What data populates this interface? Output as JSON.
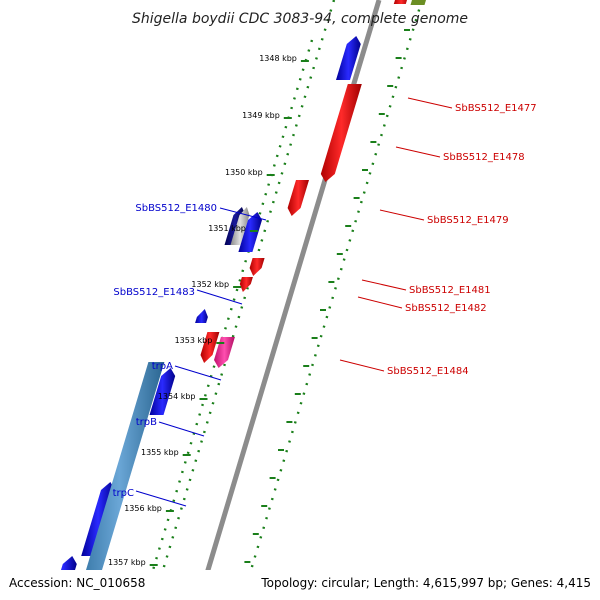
{
  "title": "Shigella boydii CDC 3083-94, complete genome",
  "footer": {
    "accession": "Accession: NC_010658",
    "topology": "Topology: circular; Length: 4,615,997 bp; Genes: 4,415"
  },
  "colors": {
    "forward_gene": "#0000ee",
    "reverse_gene": "#ee0000",
    "highlight_reverse": "#ee1493",
    "dark_gene": "#000077",
    "gray_gene": "#b0b0b0",
    "operon": "#4a86b8",
    "olive_gene": "#6b8e23",
    "tick": "#1a7f1a",
    "backbone": "#8c8c8c",
    "forward_label": "#0000cc",
    "reverse_label": "#cc0000"
  },
  "ticks": [
    "1348 kbp",
    "1349 kbp",
    "1350 kbp",
    "1351 kbp",
    "1352 kbp",
    "1353 kbp",
    "1354 kbp",
    "1355 kbp",
    "1356 kbp",
    "1357 kbp"
  ],
  "forward_labels": [
    "SbBS512_E1480",
    "SbBS512_E1483",
    "trpA",
    "trpB",
    "trpC"
  ],
  "reverse_labels": [
    "SbBS512_E1477",
    "SbBS512_E1478",
    "SbBS512_E1479",
    "SbBS512_E1481",
    "SbBS512_E1482",
    "SbBS512_E1484"
  ]
}
